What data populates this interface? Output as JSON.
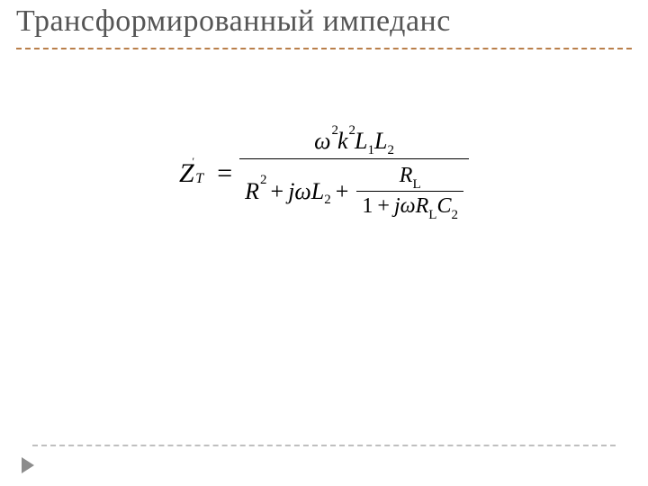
{
  "slide": {
    "title": "Трансформированный импеданс",
    "background_color": "#ffffff",
    "title_color": "#555555",
    "title_fontsize": 34,
    "divider_top_color": "#b97f4a",
    "divider_bottom_color": "#bfbfbf",
    "arrow_color": "#8c8c8c"
  },
  "formula": {
    "type": "equation",
    "latex": "Z'_T = \\frac{\\omega^2 k^2 L_1 L_2}{R^2 + j\\omega L_2 + \\dfrac{R_L}{1 + j\\omega R_L C_2}}",
    "lhs_base": "Z",
    "lhs_sub": "T",
    "lhs_prime": "'",
    "eq": "=",
    "numerator": {
      "omega": "ω",
      "omega_exp": "2",
      "k": "k",
      "k_exp": "2",
      "L1_base": "L",
      "L1_sub": "1",
      "L2_base": "L",
      "L2_sub": "2"
    },
    "denominator": {
      "R_base": "R",
      "R_exp": "2",
      "plus1": "+",
      "j1": "j",
      "omega1": "ω",
      "L2_base": "L",
      "L2_sub": "2",
      "plus2": "+",
      "inner_num": {
        "R_base": "R",
        "R_sub": "L"
      },
      "inner_den": {
        "one": "1",
        "plus": "+",
        "j": "j",
        "omega": "ω",
        "R_base": "R",
        "R_sub": "L",
        "C_base": "C",
        "C_sub": "2"
      }
    },
    "font_family": "Times New Roman",
    "base_fontsize": 30,
    "script_fontsize": 15,
    "text_color": "#000000"
  }
}
